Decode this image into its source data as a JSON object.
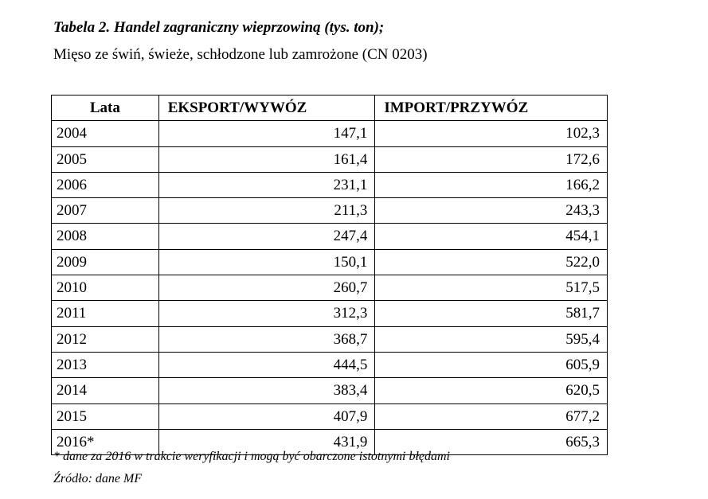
{
  "title": "Tabela 2. Handel zagraniczny wieprzowiną (tys. ton);",
  "subtitle": "Mięso ze świń, świeże, schłodzone lub zamrożone (CN 0203)",
  "table": {
    "headers": [
      "Lata",
      "EKSPORT/WYWÓZ",
      "IMPORT/PRZYWÓZ"
    ],
    "rows": [
      [
        "2004",
        "147,1",
        "102,3"
      ],
      [
        "2005",
        "161,4",
        "172,6"
      ],
      [
        "2006",
        "231,1",
        "166,2"
      ],
      [
        "2007",
        "211,3",
        "243,3"
      ],
      [
        "2008",
        "247,4",
        "454,1"
      ],
      [
        "2009",
        "150,1",
        "522,0"
      ],
      [
        "2010",
        "260,7",
        "517,5"
      ],
      [
        "2011",
        "312,3",
        "581,7"
      ],
      [
        "2012",
        "368,7",
        "595,4"
      ],
      [
        "2013",
        "444,5",
        "605,9"
      ],
      [
        "2014",
        "383,4",
        "620,5"
      ],
      [
        "2015",
        "407,9",
        "677,2"
      ],
      [
        "2016*",
        "431,9",
        "665,3"
      ]
    ]
  },
  "footnote": "* dane za  2016 w trakcie weryfikacji i mogą być obarczone istotnymi błędami",
  "source": "Źródło: dane MF"
}
